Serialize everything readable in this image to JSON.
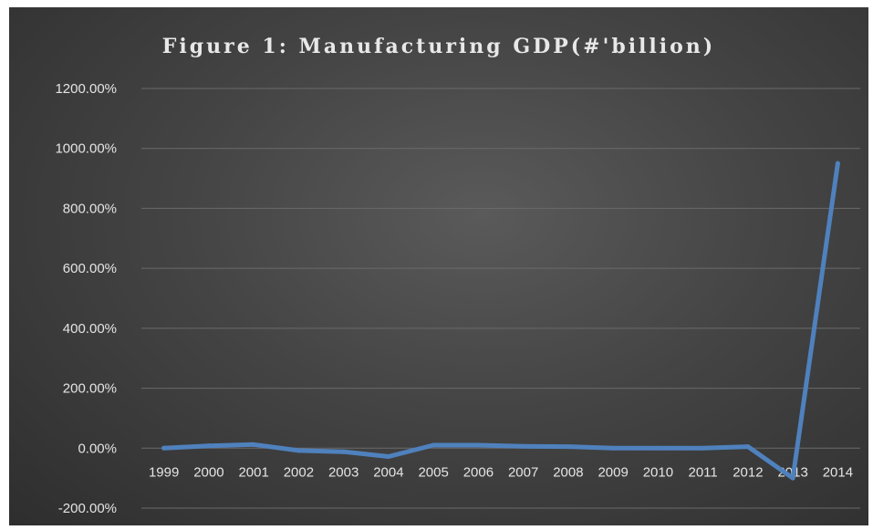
{
  "chart_data": {
    "type": "line",
    "title": "Figure 1: Manufacturing GDP(#'billion)",
    "xlabel": "",
    "ylabel": "",
    "categories": [
      "1999",
      "2000",
      "2001",
      "2002",
      "2003",
      "2004",
      "2005",
      "2006",
      "2007",
      "2008",
      "2009",
      "2010",
      "2011",
      "2012",
      "2013",
      "2014"
    ],
    "series": [
      {
        "values": [
          0,
          8,
          12,
          -8,
          -12,
          -28,
          10,
          10,
          6,
          5,
          0,
          0,
          0,
          5,
          -100,
          950
        ],
        "color": "#4f81bd"
      }
    ],
    "ylim": [
      -200,
      1200
    ],
    "yticks": [
      -200,
      0,
      200,
      400,
      600,
      800,
      1000,
      1200
    ],
    "ytick_labels": [
      "-200.00%",
      "0.00%",
      "200.00%",
      "400.00%",
      "600.00%",
      "800.00%",
      "1000.00%",
      "1200.00%"
    ],
    "grid": true,
    "legend": "none"
  }
}
